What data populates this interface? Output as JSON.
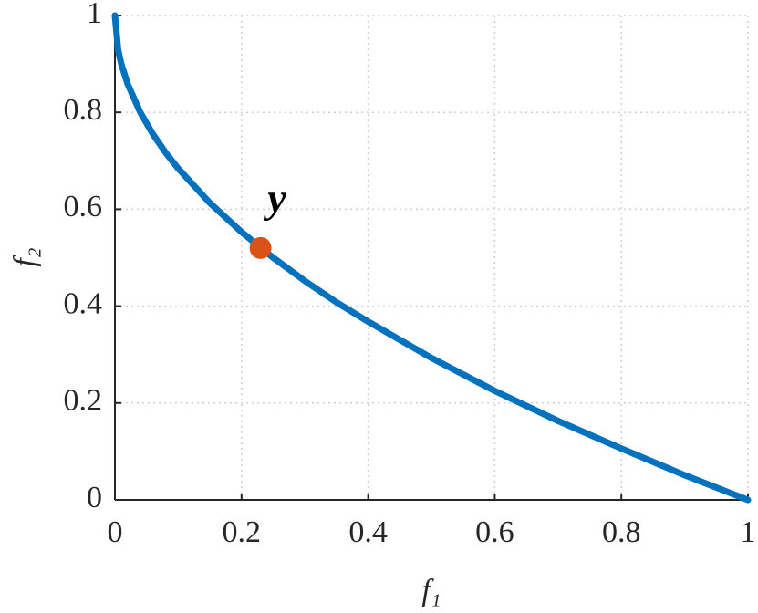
{
  "chart_data": {
    "type": "line",
    "x_label": "f₁",
    "y_label": "f₂",
    "series": [
      {
        "kind": "line",
        "color": "#0072bd",
        "x": [
          0,
          0.005,
          0.01,
          0.02,
          0.04,
          0.06,
          0.08,
          0.1,
          0.15,
          0.2,
          0.25,
          0.3,
          0.35,
          0.4,
          0.5,
          0.6,
          0.7,
          0.8,
          0.9,
          1
        ],
        "values": [
          1,
          0.929,
          0.9,
          0.859,
          0.8,
          0.755,
          0.717,
          0.684,
          0.613,
          0.553,
          0.5,
          0.452,
          0.408,
          0.368,
          0.293,
          0.225,
          0.163,
          0.106,
          0.051,
          0
        ]
      },
      {
        "kind": "point",
        "color": "#d95319",
        "label": "y",
        "x": [
          0.23
        ],
        "values": [
          0.52
        ]
      }
    ],
    "xlim": [
      0,
      1
    ],
    "ylim": [
      0,
      1
    ],
    "xticks": [
      0,
      0.2,
      0.4,
      0.6,
      0.8,
      1
    ],
    "yticks": [
      0,
      0.2,
      0.4,
      0.6,
      0.8,
      1
    ],
    "grid": true
  }
}
